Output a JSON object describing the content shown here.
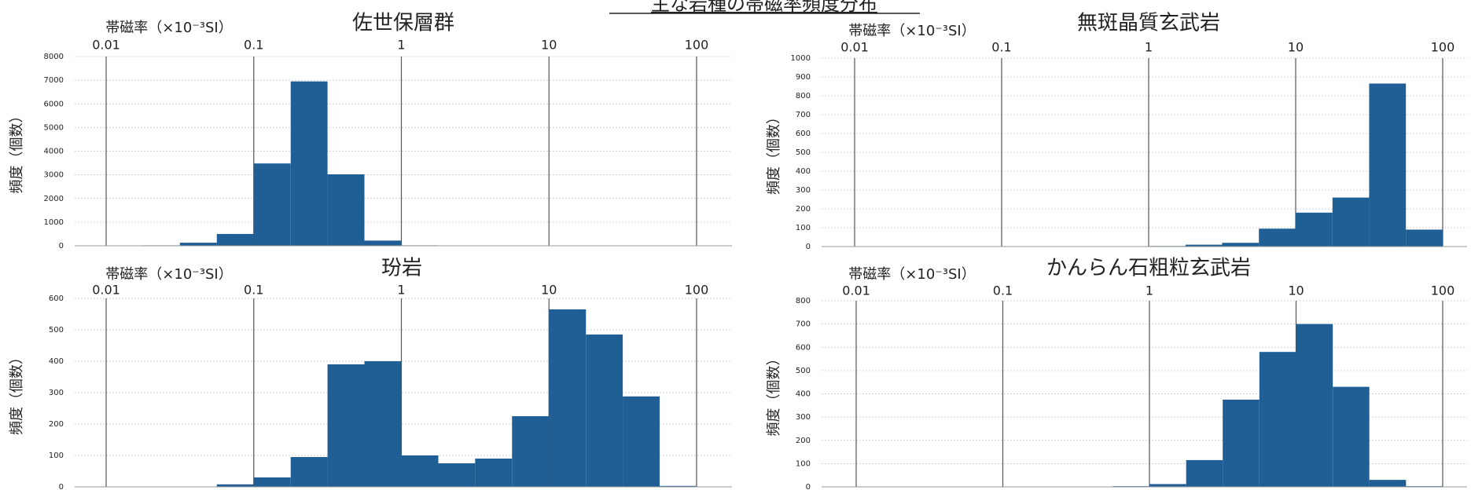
{
  "page_title": "主な岩種の帯磁率頻度分布",
  "chart_data": [
    {
      "type": "histogram",
      "title": "佐世保層群",
      "x_label": "帯磁率（×10⁻³SI）",
      "y_label": "頻度（個数）",
      "xscale": "log",
      "xlim": [
        0.01,
        100
      ],
      "xticks": [
        0.01,
        0.1,
        1,
        10,
        100
      ],
      "ylim": [
        0,
        8000
      ],
      "yticks": [
        0,
        1000,
        2000,
        3000,
        4000,
        5000,
        6000,
        7000,
        8000
      ],
      "bins": [
        0.01,
        0.0178,
        0.0316,
        0.0562,
        0.1,
        0.178,
        0.316,
        0.562,
        1,
        1.78,
        3.16,
        5.62,
        10,
        17.8,
        31.6,
        56.2,
        100
      ],
      "values": [
        0,
        20,
        130,
        500,
        3480,
        6950,
        3020,
        220,
        20,
        10,
        5,
        5,
        5,
        0,
        0,
        0
      ],
      "color": "#1f5f96",
      "grid": true
    },
    {
      "type": "histogram",
      "title": "無斑晶質玄武岩",
      "x_label": "帯磁率（×10⁻³SI）",
      "y_label": "頻度（個数）",
      "xscale": "log",
      "xlim": [
        0.01,
        100
      ],
      "xticks": [
        0.01,
        0.1,
        1,
        10,
        100
      ],
      "ylim": [
        0,
        1000
      ],
      "yticks": [
        0,
        100,
        200,
        300,
        400,
        500,
        600,
        700,
        800,
        900,
        1000
      ],
      "bins": [
        0.01,
        0.0178,
        0.0316,
        0.0562,
        0.1,
        0.178,
        0.316,
        0.562,
        1,
        1.78,
        3.16,
        5.62,
        10,
        17.8,
        31.6,
        56.2,
        100
      ],
      "values": [
        0,
        0,
        0,
        0,
        0,
        0,
        0,
        0,
        3,
        10,
        20,
        95,
        180,
        260,
        865,
        90
      ],
      "color": "#1f5f96",
      "grid": true
    },
    {
      "type": "histogram",
      "title": "玢岩",
      "x_label": "帯磁率（×10⁻³SI）",
      "y_label": "頻度（個数）",
      "xscale": "log",
      "xlim": [
        0.01,
        100
      ],
      "xticks": [
        0.01,
        0.1,
        1,
        10,
        100
      ],
      "ylim": [
        0,
        600
      ],
      "yticks": [
        0,
        100,
        200,
        300,
        400,
        500,
        600
      ],
      "bins": [
        0.01,
        0.0178,
        0.0316,
        0.0562,
        0.1,
        0.178,
        0.316,
        0.562,
        1,
        1.78,
        3.16,
        5.62,
        10,
        17.8,
        31.6,
        56.2,
        100
      ],
      "values": [
        0,
        0,
        0,
        8,
        30,
        95,
        390,
        400,
        100,
        75,
        90,
        225,
        565,
        485,
        288,
        3
      ],
      "color": "#1f5f96",
      "grid": true
    },
    {
      "type": "histogram",
      "title": "かんらん石粗粒玄武岩",
      "x_label": "帯磁率（×10⁻³SI）",
      "y_label": "頻度（個数）",
      "xscale": "log",
      "xlim": [
        0.01,
        100
      ],
      "xticks": [
        0.01,
        0.1,
        1,
        10,
        100
      ],
      "ylim": [
        0,
        800
      ],
      "yticks": [
        0,
        100,
        200,
        300,
        400,
        500,
        600,
        700,
        800
      ],
      "bins": [
        0.01,
        0.0178,
        0.0316,
        0.0562,
        0.1,
        0.178,
        0.316,
        0.562,
        1,
        1.78,
        3.16,
        5.62,
        10,
        17.8,
        31.6,
        56.2,
        100
      ],
      "values": [
        0,
        0,
        0,
        0,
        0,
        0,
        0,
        3,
        12,
        115,
        375,
        580,
        700,
        430,
        30,
        3
      ],
      "color": "#1f5f96",
      "grid": true
    }
  ]
}
